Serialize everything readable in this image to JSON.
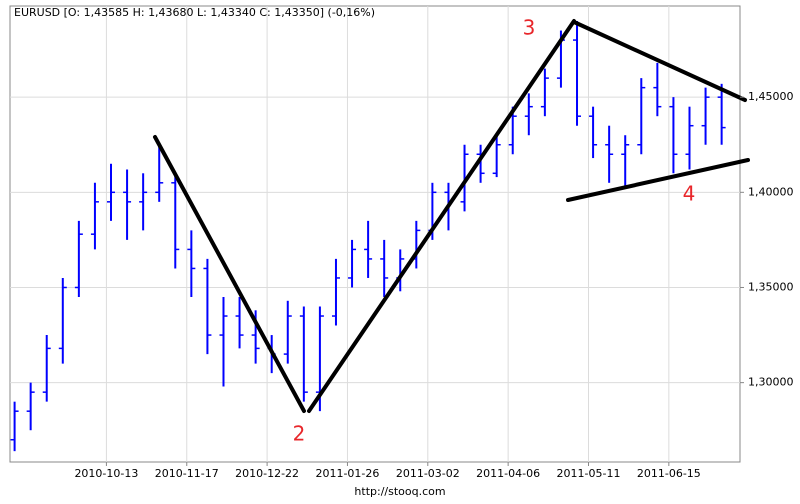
{
  "chart_data": {
    "type": "ohlc",
    "title": "EURUSD [O: 1,43585  H: 1,43680  L: 1,43340  C: 1,43350] (-0,16%)",
    "footer": "http://stooq.com",
    "color": "#0000ff",
    "x": [
      "2010-09-03",
      "2010-09-10",
      "2010-09-17",
      "2010-09-24",
      "2010-10-01",
      "2010-10-08",
      "2010-10-15",
      "2010-10-22",
      "2010-10-29",
      "2010-11-05",
      "2010-11-12",
      "2010-11-19",
      "2010-11-26",
      "2010-12-03",
      "2010-12-10",
      "2010-12-17",
      "2010-12-24",
      "2010-12-31",
      "2011-01-07",
      "2011-01-14",
      "2011-01-21",
      "2011-01-28",
      "2011-02-04",
      "2011-02-11",
      "2011-02-18",
      "2011-02-25",
      "2011-03-04",
      "2011-03-11",
      "2011-03-18",
      "2011-03-25",
      "2011-04-01",
      "2011-04-08",
      "2011-04-15",
      "2011-04-22",
      "2011-04-29",
      "2011-05-06",
      "2011-05-13",
      "2011-05-20",
      "2011-05-27",
      "2011-06-03",
      "2011-06-10",
      "2011-06-17",
      "2011-06-24",
      "2011-07-01",
      "2011-07-08"
    ],
    "open": [
      1.27,
      1.285,
      1.295,
      1.318,
      1.35,
      1.378,
      1.395,
      1.4,
      1.395,
      1.4,
      1.405,
      1.37,
      1.36,
      1.325,
      1.335,
      1.325,
      1.318,
      1.315,
      1.335,
      1.295,
      1.335,
      1.355,
      1.37,
      1.365,
      1.355,
      1.365,
      1.38,
      1.4,
      1.395,
      1.42,
      1.41,
      1.425,
      1.44,
      1.445,
      1.46,
      1.48,
      1.44,
      1.425,
      1.42,
      1.425,
      1.455,
      1.445,
      1.42,
      1.435,
      1.45
    ],
    "high": [
      1.29,
      1.3,
      1.325,
      1.355,
      1.385,
      1.405,
      1.415,
      1.412,
      1.41,
      1.425,
      1.41,
      1.38,
      1.365,
      1.345,
      1.345,
      1.338,
      1.325,
      1.343,
      1.34,
      1.34,
      1.365,
      1.375,
      1.385,
      1.375,
      1.37,
      1.385,
      1.405,
      1.405,
      1.425,
      1.425,
      1.43,
      1.445,
      1.452,
      1.465,
      1.485,
      1.49,
      1.445,
      1.435,
      1.43,
      1.46,
      1.468,
      1.45,
      1.445,
      1.455,
      1.457
    ],
    "low": [
      1.264,
      1.275,
      1.29,
      1.31,
      1.345,
      1.37,
      1.385,
      1.375,
      1.38,
      1.395,
      1.36,
      1.345,
      1.315,
      1.298,
      1.318,
      1.31,
      1.305,
      1.31,
      1.29,
      1.285,
      1.33,
      1.35,
      1.355,
      1.345,
      1.348,
      1.36,
      1.375,
      1.38,
      1.39,
      1.405,
      1.408,
      1.42,
      1.43,
      1.44,
      1.455,
      1.435,
      1.418,
      1.405,
      1.402,
      1.42,
      1.44,
      1.41,
      1.412,
      1.425,
      1.425
    ],
    "close": [
      1.285,
      1.295,
      1.318,
      1.35,
      1.378,
      1.395,
      1.4,
      1.395,
      1.4,
      1.405,
      1.37,
      1.36,
      1.325,
      1.335,
      1.325,
      1.318,
      1.315,
      1.335,
      1.295,
      1.335,
      1.355,
      1.37,
      1.365,
      1.355,
      1.365,
      1.38,
      1.4,
      1.395,
      1.42,
      1.41,
      1.425,
      1.44,
      1.445,
      1.46,
      1.48,
      1.44,
      1.425,
      1.42,
      1.425,
      1.455,
      1.445,
      1.42,
      1.435,
      1.45,
      1.434
    ],
    "xlim": [
      "2010-09-01",
      "2011-07-16"
    ],
    "xticks": [
      "2010-10-13",
      "2010-11-17",
      "2010-12-22",
      "2011-01-26",
      "2011-03-02",
      "2011-04-06",
      "2011-05-11",
      "2011-06-15"
    ],
    "ylim": [
      1.2583,
      1.4979
    ],
    "yticks": [
      {
        "value": 1.3,
        "label": "1,30000"
      },
      {
        "value": 1.35,
        "label": "1,35000"
      },
      {
        "value": 1.4,
        "label": "1,40000"
      },
      {
        "value": 1.45,
        "label": "1,45000"
      }
    ],
    "grid": true,
    "annotations": [
      "2",
      "3",
      "4"
    ]
  }
}
